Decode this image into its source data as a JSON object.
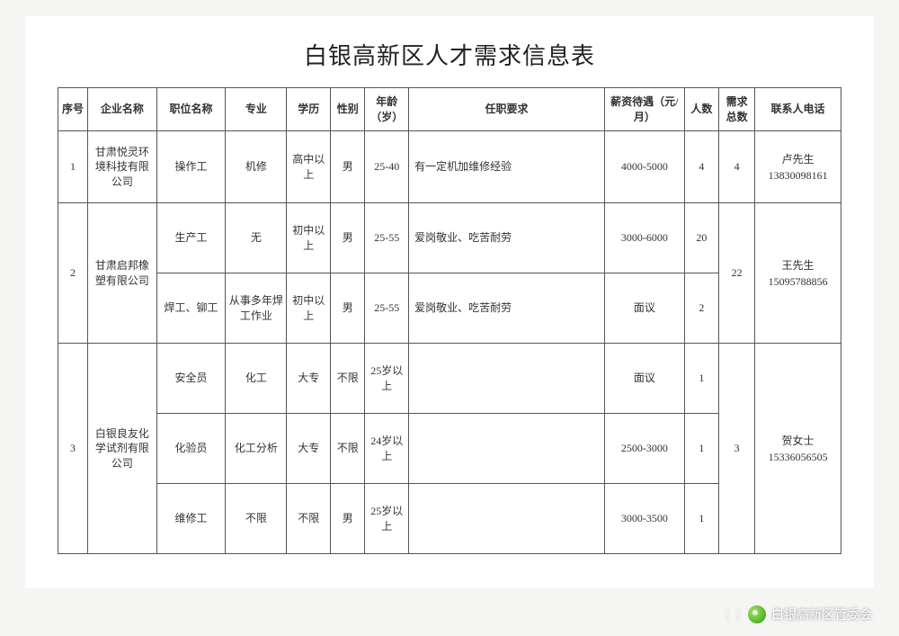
{
  "title": "白银高新区人才需求信息表",
  "columns": [
    "序号",
    "企业名称",
    "职位名称",
    "专业",
    "学历",
    "性别",
    "年龄（岁）",
    "任职要求",
    "薪资待遇（元/月）",
    "人数",
    "需求总数",
    "联系人电话"
  ],
  "col_widths_pct": [
    3.8,
    8.8,
    8.8,
    7.8,
    5.6,
    4.4,
    5.6,
    25.0,
    10.2,
    4.4,
    4.6,
    11.0
  ],
  "groups": [
    {
      "seq": "1",
      "company": "甘肃悦灵环境科技有限公司",
      "total": "4",
      "contact_name": "卢先生",
      "contact_phone": "13830098161",
      "rows": [
        {
          "position": "操作工",
          "major": "机修",
          "edu": "高中以上",
          "gender": "男",
          "age": "25-40",
          "req": "有一定机加维修经验",
          "salary": "4000-5000",
          "count": "4"
        }
      ]
    },
    {
      "seq": "2",
      "company": "甘肃启邦橡塑有限公司",
      "total": "22",
      "contact_name": "王先生",
      "contact_phone": "15095788856",
      "rows": [
        {
          "position": "生产工",
          "major": "无",
          "edu": "初中以上",
          "gender": "男",
          "age": "25-55",
          "req": "爱岗敬业、吃苦耐劳",
          "salary": "3000-6000",
          "count": "20"
        },
        {
          "position": "焊工、铆工",
          "major": "从事多年焊工作业",
          "edu": "初中以上",
          "gender": "男",
          "age": "25-55",
          "req": "爱岗敬业、吃苦耐劳",
          "salary": "面议",
          "count": "2"
        }
      ]
    },
    {
      "seq": "3",
      "company": "白银良友化学试剂有限公司",
      "total": "3",
      "contact_name": "贺女士",
      "contact_phone": "15336056505",
      "rows": [
        {
          "position": "安全员",
          "major": "化工",
          "edu": "大专",
          "gender": "不限",
          "age": "25岁以上",
          "req": "",
          "salary": "面议",
          "count": "1"
        },
        {
          "position": "化验员",
          "major": "化工分析",
          "edu": "大专",
          "gender": "不限",
          "age": "24岁以上",
          "req": "",
          "salary": "2500-3000",
          "count": "1"
        },
        {
          "position": "维修工",
          "major": "不限",
          "edu": "不限",
          "gender": "男",
          "age": "25岁以上",
          "req": "",
          "salary": "3000-3500",
          "count": "1"
        }
      ]
    }
  ],
  "footer_text": "白银高新区管委会"
}
